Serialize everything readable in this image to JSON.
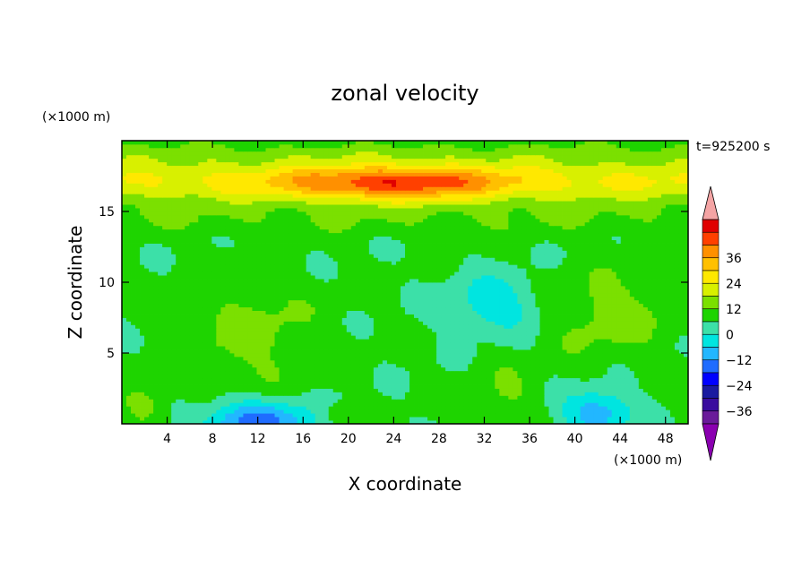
{
  "chart_data": {
    "type": "heatmap",
    "title": "zonal velocity",
    "xlabel": "X coordinate",
    "ylabel": "Z coordinate",
    "x_unit": "(×1000 m)",
    "z_unit": "(×1000 m)",
    "time_label": "t=925200 s",
    "xlim": [
      0,
      50
    ],
    "ylim": [
      0,
      20
    ],
    "x_ticks": [
      4,
      8,
      12,
      16,
      20,
      24,
      28,
      32,
      36,
      40,
      44,
      48
    ],
    "y_ticks": [
      5,
      10,
      15
    ],
    "colorbar": {
      "tick_labels": [
        "36",
        "24",
        "12",
        "0",
        "-12",
        "-24",
        "-36"
      ],
      "levels": [
        -42,
        -36,
        -30,
        -24,
        -18,
        -12,
        -6,
        0,
        6,
        12,
        18,
        24,
        30,
        36,
        42
      ],
      "colors": [
        "#6a1b9a",
        "#3a0c9e",
        "#1a1aa0",
        "#0000ff",
        "#1f6cff",
        "#22b7ff",
        "#00e5e0",
        "#3ce0a8",
        "#1ed400",
        "#7be000",
        "#d8f000",
        "#ffe800",
        "#ffc000",
        "#ff9000",
        "#ff4000",
        "#e00000"
      ],
      "over_color": "#f4a4a4",
      "under_color": "#8a00b0"
    },
    "field_description": {
      "background": 1,
      "bands": [
        {
          "z_center": 19.2,
          "z_width": 0.8,
          "value": 4
        },
        {
          "z_center": 17.2,
          "z_width": 1.6,
          "value": 17
        },
        {
          "z_center": 14.5,
          "z_width": 1.2,
          "value": 4
        }
      ],
      "blobs": [
        {
          "x": 11.5,
          "z": 6.3,
          "rx": 6.0,
          "rz": 3.8,
          "value": 7
        },
        {
          "x": 43.0,
          "z": 7.8,
          "rx": 5.5,
          "rz": 3.0,
          "value": 8
        },
        {
          "x": 34.0,
          "z": 2.2,
          "rx": 3.0,
          "rz": 2.0,
          "value": 5
        },
        {
          "x": 12.0,
          "z": 0.2,
          "rx": 5.0,
          "rz": 1.5,
          "value": -22
        },
        {
          "x": 42.0,
          "z": 0.8,
          "rx": 3.0,
          "rz": 1.6,
          "value": -18
        },
        {
          "x": 33.0,
          "z": 8.5,
          "rx": 4.0,
          "rz": 2.0,
          "value": -12
        },
        {
          "x": 2.0,
          "z": 1.5,
          "rx": 2.0,
          "rz": 1.3,
          "value": 8
        },
        {
          "x": 19.0,
          "z": 0.7,
          "rx": 1.5,
          "rz": 0.8,
          "value": 7
        },
        {
          "x": 24.0,
          "z": 17.0,
          "rx": 10.0,
          "rz": 1.2,
          "value": 24
        }
      ]
    }
  }
}
